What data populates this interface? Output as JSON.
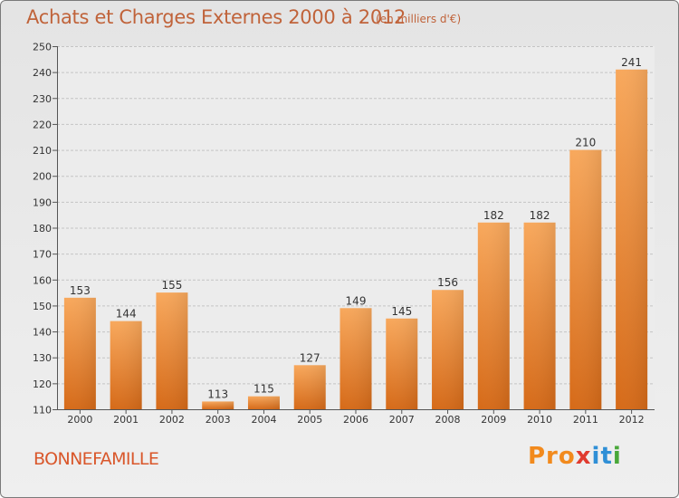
{
  "title": "Achats et Charges Externes 2000 à 2012",
  "subtitle": "(en milliers d'€)",
  "commune": "BONNEFAMILLE",
  "logo": [
    "Pro",
    "x",
    "it",
    "i"
  ],
  "colors": {
    "bar_light": "#f7a455",
    "bar_dark": "#d66c1a",
    "text": "#c0633a"
  },
  "chart_data": {
    "type": "bar",
    "title": "Achats et Charges Externes 2000 à 2012",
    "subtitle": "(en milliers d'€)",
    "categories": [
      "2000",
      "2001",
      "2002",
      "2003",
      "2004",
      "2005",
      "2006",
      "2007",
      "2008",
      "2009",
      "2010",
      "2011",
      "2012"
    ],
    "values": [
      153,
      144,
      155,
      113,
      115,
      127,
      149,
      145,
      156,
      182,
      182,
      210,
      241
    ],
    "ylim": [
      110,
      250
    ],
    "yticks": [
      110,
      120,
      130,
      140,
      150,
      160,
      170,
      180,
      190,
      200,
      210,
      220,
      230,
      240,
      250
    ],
    "grid": true,
    "data_labels": true
  }
}
